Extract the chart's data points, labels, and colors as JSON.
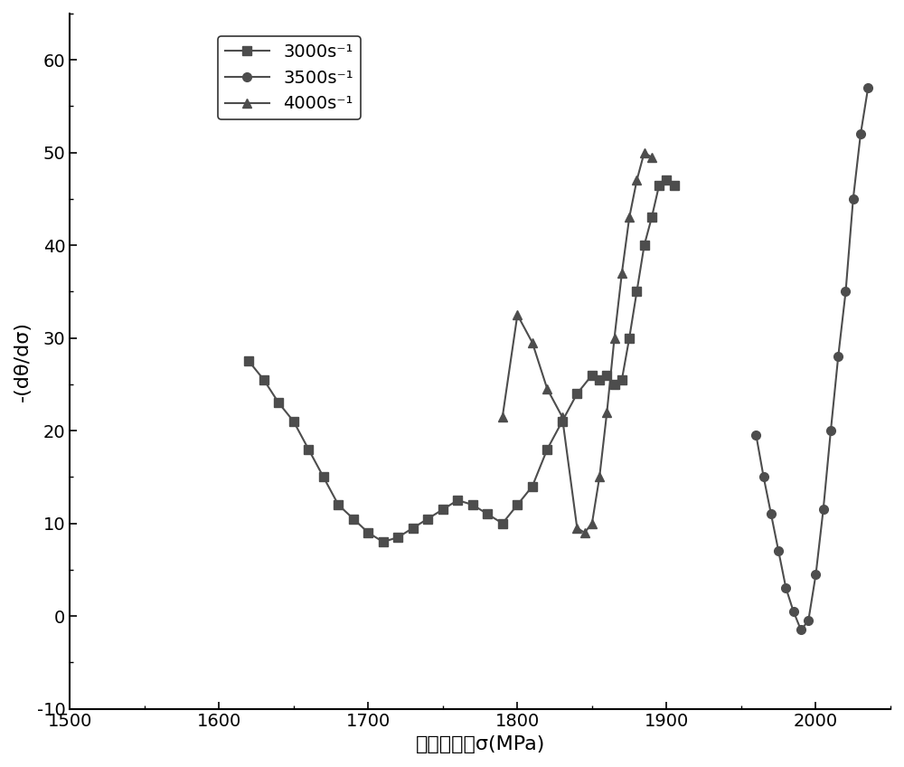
{
  "title": "",
  "xlabel": "真实应力，σ(MPa)",
  "ylabel": "-(dθ/dσ)",
  "xlim": [
    1500,
    2050
  ],
  "ylim": [
    -10,
    65
  ],
  "xticks": [
    1500,
    1600,
    1700,
    1800,
    1900,
    2000
  ],
  "yticks": [
    -10,
    0,
    10,
    20,
    30,
    40,
    50,
    60
  ],
  "background_color": "#ffffff",
  "line_color": "#4d4d4d",
  "series": [
    {
      "label": "3000s⁻¹",
      "marker": "s",
      "x": [
        1620,
        1630,
        1640,
        1650,
        1660,
        1670,
        1680,
        1690,
        1700,
        1710,
        1720,
        1730,
        1740,
        1750,
        1760,
        1770,
        1780,
        1790,
        1800,
        1810,
        1820,
        1830,
        1840,
        1850,
        1855,
        1860,
        1865,
        1870,
        1875,
        1880,
        1885,
        1890,
        1895,
        1900,
        1905
      ],
      "y": [
        27.5,
        25.5,
        23.0,
        21.0,
        18.0,
        15.0,
        12.0,
        10.5,
        9.0,
        8.0,
        8.5,
        9.5,
        10.5,
        11.5,
        12.5,
        12.0,
        11.0,
        10.0,
        12.0,
        14.0,
        18.0,
        21.0,
        24.0,
        26.0,
        25.5,
        26.0,
        25.0,
        25.5,
        30.0,
        35.0,
        40.0,
        43.0,
        46.5,
        47.0,
        46.5
      ]
    },
    {
      "label": "3500s⁻¹",
      "marker": "o",
      "x": [
        1960,
        1965,
        1970,
        1975,
        1980,
        1985,
        1990,
        1995,
        2000,
        2005,
        2010,
        2015,
        2020,
        2025,
        2030,
        2035
      ],
      "y": [
        19.5,
        15.0,
        11.0,
        7.0,
        3.0,
        0.5,
        -1.5,
        -0.5,
        4.5,
        11.5,
        20.0,
        28.0,
        35.0,
        45.0,
        52.0,
        57.0
      ]
    },
    {
      "label": "4000s⁻¹",
      "marker": "^",
      "x": [
        1790,
        1800,
        1810,
        1820,
        1830,
        1840,
        1845,
        1850,
        1855,
        1860,
        1865,
        1870,
        1875,
        1880,
        1885,
        1890
      ],
      "y": [
        21.5,
        32.5,
        29.5,
        24.5,
        21.5,
        9.5,
        9.0,
        10.0,
        15.0,
        22.0,
        30.0,
        37.0,
        43.0,
        47.0,
        50.0,
        49.5
      ]
    }
  ]
}
